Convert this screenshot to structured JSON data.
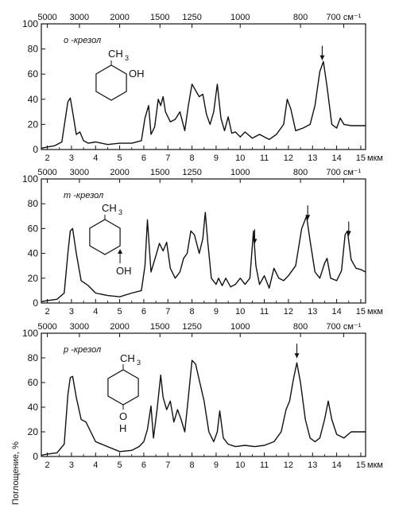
{
  "ylabel": "Поглощение, %",
  "chart_data": [
    {
      "type": "line",
      "name_label": "o -крезол",
      "formula_top": "CH",
      "formula_sub": "3",
      "formula_side": "OH",
      "ylim": [
        0,
        100
      ],
      "xlim": [
        1.75,
        15.2
      ],
      "yticks": [
        0,
        20,
        40,
        60,
        80,
        100
      ],
      "xticks": [
        2,
        3,
        4,
        5,
        6,
        7,
        8,
        9,
        10,
        11,
        12,
        13,
        14,
        15
      ],
      "xunit": "мкм",
      "top_ticks": [
        {
          "label": "5000",
          "pos": 2.0
        },
        {
          "label": "3000",
          "pos": 3.33
        },
        {
          "label": "2000",
          "pos": 5.0
        },
        {
          "label": "1500",
          "pos": 6.67
        },
        {
          "label": "1250",
          "pos": 8.0
        },
        {
          "label": "1000",
          "pos": 10.0
        },
        {
          "label": "800",
          "pos": 12.5
        },
        {
          "label": "700 см⁻¹",
          "pos": 14.29
        }
      ],
      "arrows": [
        13.4
      ],
      "x": [
        1.75,
        2.0,
        2.3,
        2.6,
        2.75,
        2.85,
        2.95,
        3.05,
        3.2,
        3.35,
        3.5,
        3.7,
        4.0,
        4.5,
        5.0,
        5.5,
        5.9,
        6.05,
        6.2,
        6.3,
        6.45,
        6.6,
        6.7,
        6.8,
        6.9,
        7.1,
        7.3,
        7.5,
        7.7,
        7.85,
        8.0,
        8.15,
        8.3,
        8.45,
        8.6,
        8.75,
        8.9,
        9.05,
        9.2,
        9.35,
        9.5,
        9.65,
        9.8,
        10.0,
        10.2,
        10.5,
        10.8,
        11.2,
        11.5,
        11.8,
        11.95,
        12.1,
        12.3,
        12.6,
        12.9,
        13.1,
        13.3,
        13.45,
        13.6,
        13.8,
        14.0,
        14.15,
        14.3,
        14.6,
        15.0,
        15.2
      ],
      "values": [
        1,
        2,
        3,
        6,
        25,
        38,
        41,
        30,
        12,
        14,
        7,
        5,
        6,
        4,
        5,
        5,
        7,
        25,
        35,
        12,
        18,
        40,
        35,
        42,
        30,
        22,
        24,
        30,
        15,
        35,
        52,
        47,
        42,
        44,
        28,
        20,
        30,
        52,
        25,
        15,
        26,
        13,
        14,
        10,
        14,
        9,
        12,
        8,
        12,
        20,
        40,
        32,
        15,
        17,
        20,
        35,
        62,
        70,
        50,
        20,
        17,
        25,
        20,
        19,
        19,
        19
      ]
    },
    {
      "type": "line",
      "name_label": "m -крезол",
      "formula_top": "CH",
      "formula_sub": "3",
      "formula_side": "OH",
      "ylim": [
        0,
        100
      ],
      "xlim": [
        1.75,
        15.2
      ],
      "yticks": [
        0,
        20,
        40,
        60,
        80,
        100
      ],
      "xticks": [
        2,
        3,
        4,
        5,
        6,
        7,
        8,
        9,
        10,
        11,
        12,
        13,
        14,
        15
      ],
      "xunit": "мкм",
      "top_ticks": [
        {
          "label": "5000",
          "pos": 2.0
        },
        {
          "label": "3000",
          "pos": 3.33
        },
        {
          "label": "2000",
          "pos": 5.0
        },
        {
          "label": "1500",
          "pos": 6.67
        },
        {
          "label": "1250",
          "pos": 8.0
        },
        {
          "label": "1000",
          "pos": 10.0
        },
        {
          "label": "800",
          "pos": 12.5
        },
        {
          "label": "700 см⁻¹",
          "pos": 14.29
        }
      ],
      "arrows": [
        10.6,
        12.8,
        14.5
      ],
      "x": [
        1.75,
        2.0,
        2.4,
        2.7,
        2.85,
        2.95,
        3.05,
        3.2,
        3.4,
        3.7,
        4.0,
        4.5,
        5.0,
        5.5,
        5.9,
        6.05,
        6.15,
        6.3,
        6.5,
        6.65,
        6.8,
        6.95,
        7.1,
        7.3,
        7.5,
        7.65,
        7.8,
        7.95,
        8.1,
        8.3,
        8.45,
        8.55,
        8.65,
        8.8,
        9.0,
        9.1,
        9.25,
        9.4,
        9.6,
        9.8,
        10.0,
        10.2,
        10.4,
        10.55,
        10.65,
        10.8,
        11.0,
        11.2,
        11.4,
        11.6,
        11.8,
        12.0,
        12.3,
        12.55,
        12.75,
        12.9,
        13.1,
        13.3,
        13.5,
        13.6,
        13.75,
        14.0,
        14.2,
        14.35,
        14.45,
        14.6,
        14.8,
        15.0,
        15.2
      ],
      "values": [
        1,
        2,
        3,
        8,
        40,
        58,
        60,
        40,
        18,
        14,
        8,
        6,
        5,
        8,
        10,
        30,
        67,
        25,
        38,
        48,
        42,
        49,
        28,
        20,
        25,
        36,
        40,
        58,
        55,
        40,
        52,
        73,
        50,
        20,
        15,
        20,
        14,
        20,
        13,
        15,
        20,
        15,
        20,
        58,
        30,
        15,
        22,
        12,
        28,
        20,
        18,
        22,
        30,
        60,
        70,
        50,
        25,
        20,
        32,
        36,
        20,
        18,
        26,
        55,
        58,
        35,
        28,
        27,
        25
      ]
    },
    {
      "type": "line",
      "name_label": "p -крезол",
      "formula_top": "CH",
      "formula_sub": "3",
      "formula_o": "O",
      "formula_h": "H",
      "ylim": [
        0,
        100
      ],
      "xlim": [
        1.75,
        15.2
      ],
      "yticks": [
        0,
        20,
        40,
        60,
        80,
        100
      ],
      "xticks": [
        2,
        3,
        4,
        5,
        6,
        7,
        8,
        9,
        10,
        11,
        12,
        13,
        14,
        15
      ],
      "xunit": "мкм",
      "top_ticks": [
        {
          "label": "5000",
          "pos": 2.0
        },
        {
          "label": "3000",
          "pos": 3.33
        },
        {
          "label": "2000",
          "pos": 5.0
        },
        {
          "label": "1500",
          "pos": 6.67
        },
        {
          "label": "1250",
          "pos": 8.0
        },
        {
          "label": "1000",
          "pos": 10.0
        },
        {
          "label": "800",
          "pos": 12.5
        },
        {
          "label": "700 см⁻¹",
          "pos": 14.29
        }
      ],
      "arrows": [
        12.35
      ],
      "x": [
        1.75,
        2.0,
        2.4,
        2.7,
        2.85,
        2.95,
        3.05,
        3.2,
        3.4,
        3.6,
        3.8,
        4.0,
        4.5,
        5.0,
        5.5,
        5.8,
        6.0,
        6.15,
        6.3,
        6.4,
        6.55,
        6.7,
        6.8,
        6.95,
        7.1,
        7.25,
        7.4,
        7.55,
        7.7,
        7.85,
        8.0,
        8.15,
        8.3,
        8.5,
        8.7,
        8.9,
        9.05,
        9.15,
        9.3,
        9.5,
        9.8,
        10.2,
        10.6,
        11.0,
        11.4,
        11.7,
        11.9,
        12.05,
        12.2,
        12.35,
        12.5,
        12.7,
        12.9,
        13.1,
        13.3,
        13.5,
        13.65,
        13.8,
        14.0,
        14.3,
        14.6,
        15.0,
        15.2
      ],
      "values": [
        1,
        2,
        3,
        10,
        50,
        64,
        65,
        48,
        30,
        28,
        20,
        12,
        8,
        4,
        5,
        8,
        12,
        22,
        41,
        15,
        38,
        66,
        48,
        38,
        45,
        28,
        38,
        30,
        20,
        48,
        78,
        75,
        62,
        45,
        20,
        12,
        20,
        37,
        15,
        10,
        8,
        9,
        8,
        9,
        12,
        20,
        38,
        45,
        62,
        76,
        60,
        30,
        15,
        12,
        15,
        30,
        45,
        30,
        18,
        15,
        20,
        20,
        20
      ]
    }
  ]
}
